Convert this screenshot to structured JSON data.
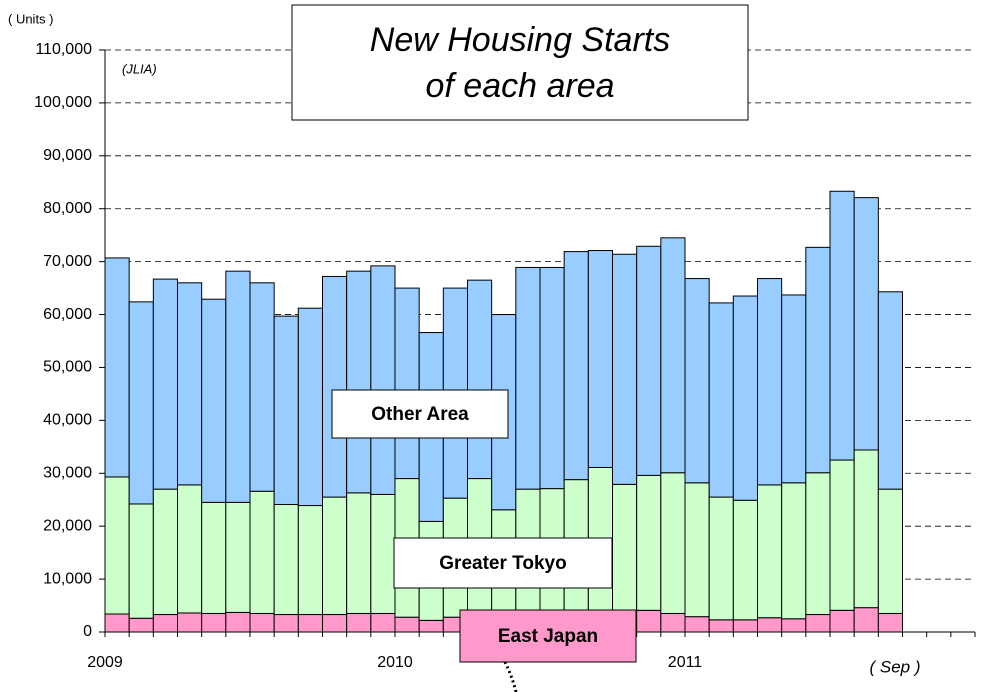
{
  "chart_data": {
    "type": "stacked_bar",
    "title": [
      "New Housing Starts",
      "of each area"
    ],
    "y_axis_label": "( Units )",
    "annotations": [
      "(JLIA)",
      "( Sep )"
    ],
    "categories": [
      "2009",
      null,
      null,
      null,
      null,
      null,
      null,
      null,
      null,
      null,
      null,
      null,
      "2010",
      null,
      null,
      null,
      null,
      null,
      null,
      null,
      null,
      null,
      null,
      null,
      "2011",
      null,
      null,
      null,
      null,
      null,
      null,
      null,
      null,
      null,
      null,
      null
    ],
    "series": [
      {
        "name": "East Japan",
        "color": "#ff99cc",
        "values": [
          3400,
          2600,
          3300,
          3600,
          3500,
          3700,
          3500,
          3300,
          3300,
          3300,
          3500,
          3500,
          2800,
          2200,
          2800,
          3000,
          2700,
          3000,
          3200,
          3500,
          3600,
          3800,
          4100,
          3500,
          2900,
          2300,
          2300,
          2700,
          2500,
          3300,
          4100,
          4600,
          3500,
          null,
          null,
          null
        ]
      },
      {
        "name": "Greater Tokyo",
        "color": "#ccffcc",
        "values": [
          25900,
          21600,
          23700,
          24200,
          21000,
          20800,
          23100,
          20800,
          20600,
          22200,
          22800,
          22500,
          26200,
          18700,
          22500,
          26000,
          20400,
          24000,
          23900,
          25300,
          27500,
          24100,
          25500,
          26600,
          25300,
          23200,
          22600,
          25100,
          25700,
          26800,
          28400,
          29800,
          23500,
          null,
          null,
          null
        ]
      },
      {
        "name": "Other Area",
        "color": "#99ccff",
        "values": [
          41400,
          38200,
          39700,
          38200,
          38400,
          43700,
          39400,
          35600,
          37300,
          41700,
          41900,
          43200,
          36000,
          35700,
          39700,
          37500,
          36900,
          41900,
          41800,
          43100,
          41000,
          43500,
          43300,
          44400,
          38600,
          36700,
          38600,
          39000,
          35500,
          42600,
          50800,
          47700,
          37300,
          null,
          null,
          null
        ]
      }
    ],
    "ylim": [
      0,
      110000
    ],
    "yticks": [
      0,
      {
        "value": 10000,
        "label": "10,000"
      },
      {
        "value": 20000,
        "label": "20,000"
      },
      {
        "value": 30000,
        "label": "30,000"
      },
      {
        "value": 40000,
        "label": "40,000"
      },
      {
        "value": 50000,
        "label": "50,000"
      },
      {
        "value": 60000,
        "label": "60,000"
      },
      {
        "value": 70000,
        "label": "70,000"
      },
      {
        "value": 80000,
        "label": "80,000"
      },
      {
        "value": 90000,
        "label": "90,000"
      },
      {
        "value": 100000,
        "label": "100,000"
      },
      {
        "value": 110000,
        "label": "110,000"
      }
    ],
    "grid": true
  }
}
